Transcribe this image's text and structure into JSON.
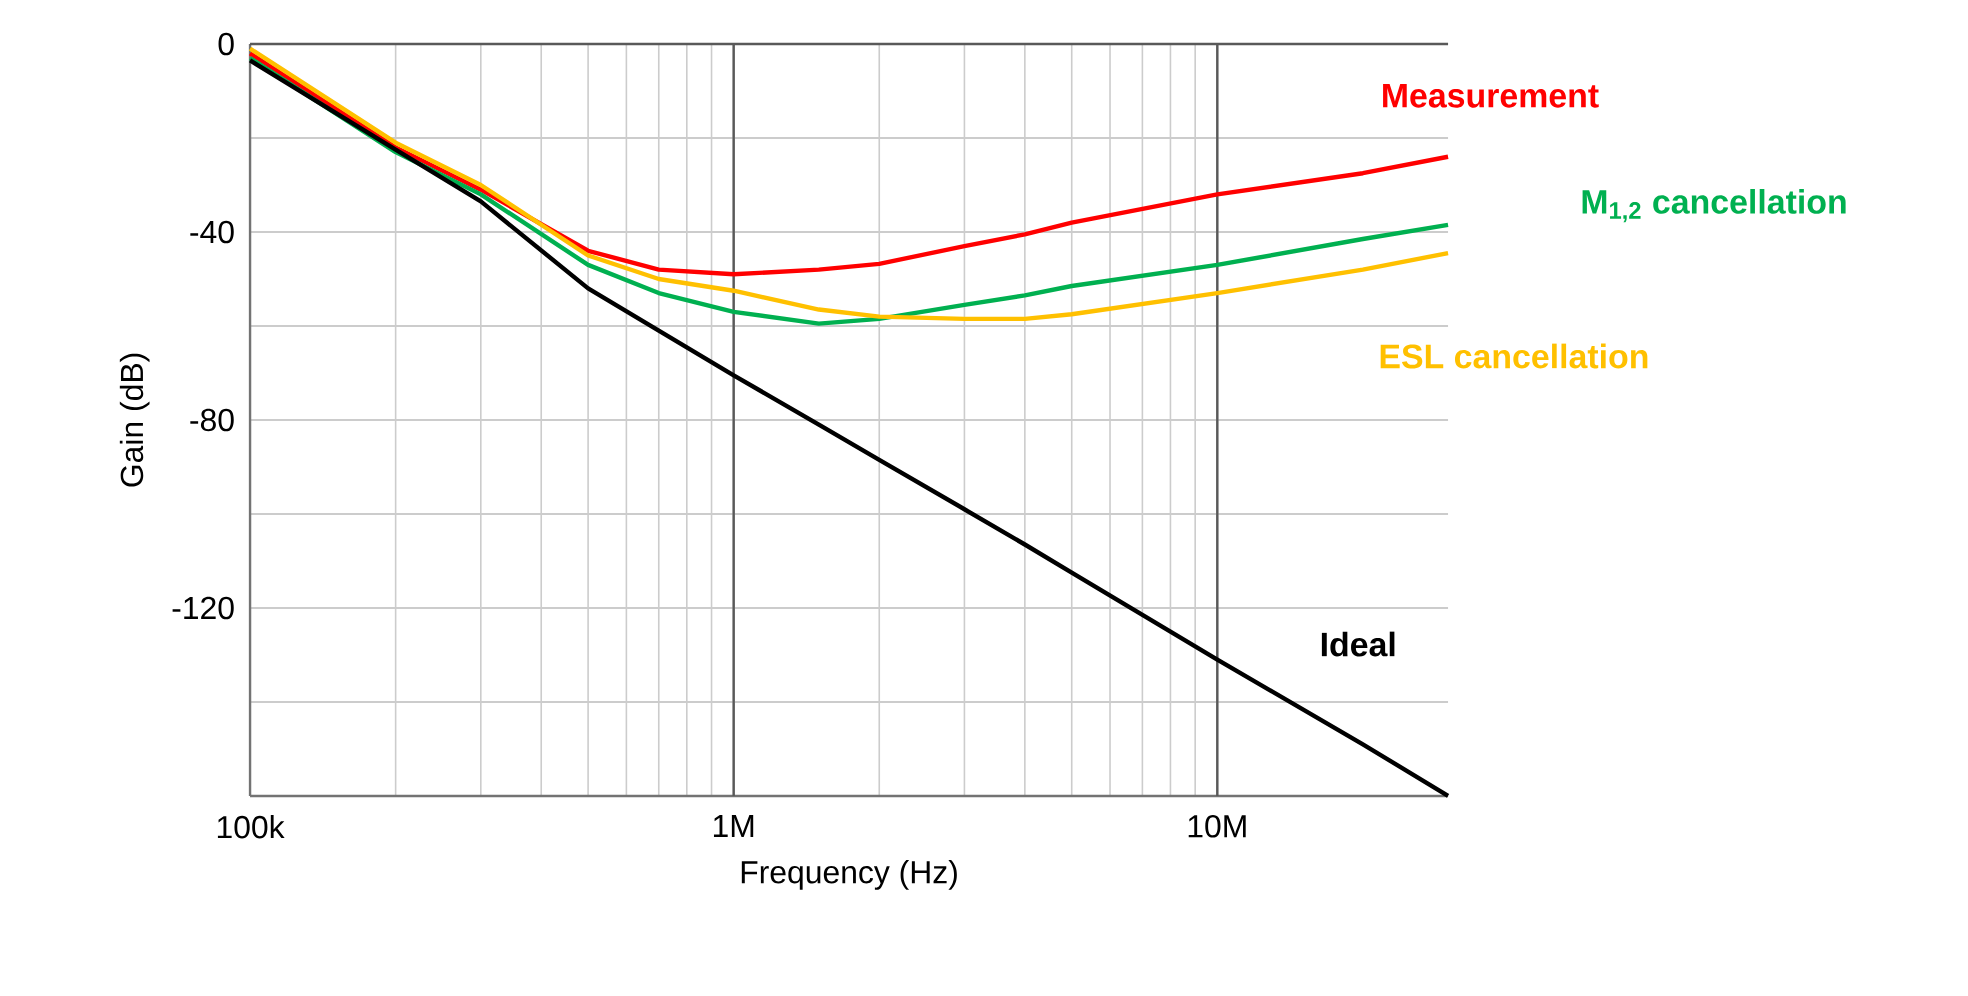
{
  "chart_data": {
    "type": "line",
    "xlabel": "Frequency (Hz)",
    "ylabel": "Gain (dB)",
    "log": "x",
    "grid": true,
    "marker": "none",
    "line_style": "solid",
    "xlim": [
      100000,
      30000000
    ],
    "ylim": [
      -160,
      0
    ],
    "xticks": [
      {
        "value": 100000,
        "label": "100k"
      },
      {
        "value": 1000000,
        "label": "1M"
      },
      {
        "value": 10000000,
        "label": "10M"
      }
    ],
    "yticks": [
      0,
      {
        "value": -20,
        "label": null
      },
      -40,
      {
        "value": -60,
        "label": null
      },
      -80,
      {
        "value": -100,
        "label": null
      },
      -120,
      {
        "value": -140,
        "label": null
      },
      {
        "value": -160,
        "label": null
      }
    ],
    "x": [
      100000,
      200000,
      300000,
      500000,
      700000,
      1000000,
      1500000,
      2000000,
      3000000,
      4000000,
      5000000,
      10000000,
      20000000,
      30000000
    ],
    "series": [
      {
        "name": "Measurement",
        "color": "#ff0000",
        "values": [
          -2,
          -22,
          -31,
          -44,
          -48,
          -49,
          -48,
          -46.8,
          -43,
          -40.5,
          -38,
          -32,
          -27.5,
          -24
        ]
      },
      {
        "name": "M$_{1,2}$ cancellation",
        "color": "#00b050",
        "values": [
          -3,
          -23,
          -32,
          -47,
          -53,
          -57,
          -59.5,
          -58.5,
          -55.5,
          -53.5,
          -51.5,
          -47,
          -41.5,
          -38.5
        ]
      },
      {
        "name": "ESL cancellation",
        "color": "#ffc000",
        "values": [
          -1,
          -21,
          -30,
          -45,
          -50,
          -52.5,
          -56.5,
          -58,
          -58.5,
          -58.5,
          -57.5,
          -53,
          -48,
          -44.5
        ]
      },
      {
        "name": "Ideal",
        "color": "#000000",
        "values": [
          -3.5,
          -22.5,
          -33.5,
          -52,
          -61,
          -70.5,
          -81,
          -88.5,
          -99,
          -106.5,
          -112.5,
          -131,
          -149,
          -160
        ]
      }
    ]
  }
}
